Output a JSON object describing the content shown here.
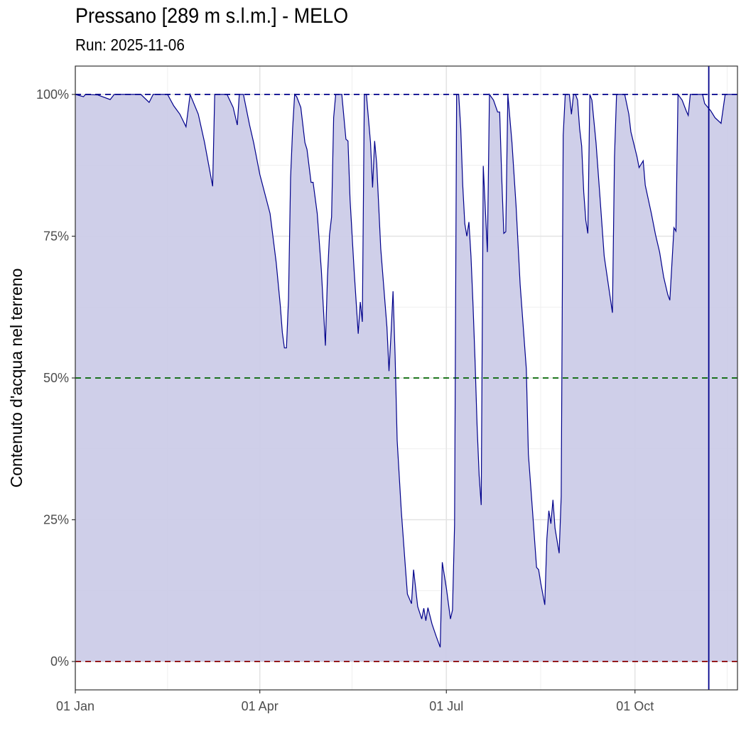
{
  "title": "Pressano [289 m s.l.m.] - MELO",
  "subtitle": "Run: 2025-11-06",
  "chart_data": {
    "type": "area",
    "title": "Pressano [289 m s.l.m.] - MELO",
    "subtitle": "Run: 2025-11-06",
    "xlabel": "",
    "ylabel": "Contenuto d'acqua nel terreno",
    "xlim": [
      "2025-01-01",
      "2025-11-20"
    ],
    "ylim": [
      -5,
      105
    ],
    "x_ticks": [
      {
        "date": "2025-01-01",
        "label": "01 Jan"
      },
      {
        "date": "2025-04-01",
        "label": "01 Apr"
      },
      {
        "date": "2025-07-01",
        "label": "01 Jul"
      },
      {
        "date": "2025-10-01",
        "label": "01 Oct"
      }
    ],
    "y_ticks": [
      {
        "value": 0,
        "label": "0%"
      },
      {
        "value": 25,
        "label": "25%"
      },
      {
        "value": 50,
        "label": "50%"
      },
      {
        "value": 75,
        "label": "75%"
      },
      {
        "value": 100,
        "label": "100%"
      }
    ],
    "grid": true,
    "colors": {
      "line": "#00008b",
      "fill": "#ccccE8",
      "ref_100": "#00008b",
      "ref_50": "#006400",
      "ref_0": "#8b0000",
      "run_line": "#00008b"
    },
    "reference_lines": [
      {
        "value": 100,
        "style": "dashed",
        "color": "#00008b"
      },
      {
        "value": 50,
        "style": "dashed",
        "color": "#006400"
      },
      {
        "value": 0,
        "style": "dashed",
        "color": "#8b0000"
      }
    ],
    "vertical_line": {
      "date": "2025-11-06",
      "color": "#00008b"
    },
    "series": [
      {
        "points": [
          [
            "2025-01-01",
            100
          ],
          [
            "2025-01-05",
            99.6
          ],
          [
            "2025-01-06",
            100
          ],
          [
            "2025-01-12",
            99.9
          ],
          [
            "2025-01-18",
            99.1
          ],
          [
            "2025-01-20",
            100
          ],
          [
            "2025-02-02",
            100
          ],
          [
            "2025-02-06",
            98.6
          ],
          [
            "2025-02-08",
            100
          ],
          [
            "2025-02-15",
            100
          ],
          [
            "2025-02-18",
            98
          ],
          [
            "2025-02-21",
            96.5
          ],
          [
            "2025-02-24",
            94.3
          ],
          [
            "2025-02-26",
            100
          ],
          [
            "2025-03-02",
            96.5
          ],
          [
            "2025-03-05",
            91.6
          ],
          [
            "2025-03-09",
            83.8
          ],
          [
            "2025-03-10",
            100
          ],
          [
            "2025-03-16",
            100
          ],
          [
            "2025-03-19",
            97.7
          ],
          [
            "2025-03-21",
            94.6
          ],
          [
            "2025-03-22",
            100
          ],
          [
            "2025-03-24",
            100
          ],
          [
            "2025-03-27",
            94.6
          ],
          [
            "2025-03-29",
            91.5
          ],
          [
            "2025-04-01",
            85.9
          ],
          [
            "2025-04-06",
            79
          ],
          [
            "2025-04-09",
            70.3
          ],
          [
            "2025-04-11",
            62.8
          ],
          [
            "2025-04-12",
            58
          ],
          [
            "2025-04-13",
            55.3
          ],
          [
            "2025-04-14",
            55.3
          ],
          [
            "2025-04-15",
            64
          ],
          [
            "2025-04-16",
            85.3
          ],
          [
            "2025-04-17",
            94
          ],
          [
            "2025-04-18",
            100
          ],
          [
            "2025-04-19",
            99.6
          ],
          [
            "2025-04-21",
            97.7
          ],
          [
            "2025-04-23",
            91.5
          ],
          [
            "2025-04-24",
            90.3
          ],
          [
            "2025-04-26",
            84.5
          ],
          [
            "2025-04-27",
            84.5
          ],
          [
            "2025-04-29",
            79
          ],
          [
            "2025-05-01",
            69
          ],
          [
            "2025-05-03",
            55.7
          ],
          [
            "2025-05-04",
            67.8
          ],
          [
            "2025-05-05",
            75.3
          ],
          [
            "2025-05-06",
            78.4
          ],
          [
            "2025-05-07",
            95.9
          ],
          [
            "2025-05-08",
            100
          ],
          [
            "2025-05-11",
            100
          ],
          [
            "2025-05-13",
            92.1
          ],
          [
            "2025-05-14",
            91.8
          ],
          [
            "2025-05-15",
            81.5
          ],
          [
            "2025-05-17",
            69
          ],
          [
            "2025-05-19",
            57.8
          ],
          [
            "2025-05-20",
            63.4
          ],
          [
            "2025-05-21",
            59.9
          ],
          [
            "2025-05-22",
            100
          ],
          [
            "2025-05-23",
            100
          ],
          [
            "2025-05-25",
            91.5
          ],
          [
            "2025-05-26",
            83.6
          ],
          [
            "2025-05-27",
            91.8
          ],
          [
            "2025-05-28",
            87.8
          ],
          [
            "2025-05-30",
            72.8
          ],
          [
            "2025-06-02",
            59
          ],
          [
            "2025-06-03",
            51.2
          ],
          [
            "2025-06-04",
            57.8
          ],
          [
            "2025-06-05",
            65.3
          ],
          [
            "2025-06-06",
            54
          ],
          [
            "2025-06-07",
            39
          ],
          [
            "2025-06-09",
            26.6
          ],
          [
            "2025-06-11",
            16.6
          ],
          [
            "2025-06-12",
            11.9
          ],
          [
            "2025-06-14",
            10.2
          ],
          [
            "2025-06-15",
            16.2
          ],
          [
            "2025-06-17",
            9.7
          ],
          [
            "2025-06-19",
            7.5
          ],
          [
            "2025-06-20",
            9.4
          ],
          [
            "2025-06-21",
            7.2
          ],
          [
            "2025-06-22",
            9.5
          ],
          [
            "2025-06-24",
            6.6
          ],
          [
            "2025-06-26",
            4.5
          ],
          [
            "2025-06-28",
            2.5
          ],
          [
            "2025-06-29",
            17.5
          ],
          [
            "2025-07-01",
            12.9
          ],
          [
            "2025-07-03",
            7.5
          ],
          [
            "2025-07-04",
            9.1
          ],
          [
            "2025-07-05",
            24.1
          ],
          [
            "2025-07-06",
            100
          ],
          [
            "2025-07-07",
            100
          ],
          [
            "2025-07-08",
            94
          ],
          [
            "2025-07-09",
            84
          ],
          [
            "2025-07-10",
            77.2
          ],
          [
            "2025-07-11",
            75
          ],
          [
            "2025-07-12",
            77.5
          ],
          [
            "2025-07-13",
            71.5
          ],
          [
            "2025-07-14",
            62.8
          ],
          [
            "2025-07-15",
            52.8
          ],
          [
            "2025-07-16",
            41.6
          ],
          [
            "2025-07-17",
            32.8
          ],
          [
            "2025-07-18",
            27.6
          ],
          [
            "2025-07-19",
            87.4
          ],
          [
            "2025-07-21",
            72.2
          ],
          [
            "2025-07-22",
            100
          ],
          [
            "2025-07-24",
            99
          ],
          [
            "2025-07-26",
            96.9
          ],
          [
            "2025-07-27",
            96.9
          ],
          [
            "2025-07-28",
            85.3
          ],
          [
            "2025-07-29",
            75.5
          ],
          [
            "2025-07-30",
            75.8
          ],
          [
            "2025-07-31",
            100
          ],
          [
            "2025-08-02",
            91.5
          ],
          [
            "2025-08-04",
            80.3
          ],
          [
            "2025-08-06",
            66.5
          ],
          [
            "2025-08-09",
            51.6
          ],
          [
            "2025-08-10",
            36.6
          ],
          [
            "2025-08-12",
            26.6
          ],
          [
            "2025-08-14",
            16.6
          ],
          [
            "2025-08-15",
            16.2
          ],
          [
            "2025-08-16",
            13.9
          ],
          [
            "2025-08-18",
            10
          ],
          [
            "2025-08-19",
            21.6
          ],
          [
            "2025-08-20",
            26.6
          ],
          [
            "2025-08-21",
            24.3
          ],
          [
            "2025-08-22",
            28.5
          ],
          [
            "2025-08-23",
            23.5
          ],
          [
            "2025-08-25",
            19.1
          ],
          [
            "2025-08-26",
            29.1
          ],
          [
            "2025-08-27",
            92.8
          ],
          [
            "2025-08-28",
            100
          ],
          [
            "2025-08-30",
            100
          ],
          [
            "2025-08-31",
            96.5
          ],
          [
            "2025-09-01",
            100
          ],
          [
            "2025-09-02",
            100
          ],
          [
            "2025-09-03",
            99
          ],
          [
            "2025-09-04",
            94
          ],
          [
            "2025-09-05",
            90.9
          ],
          [
            "2025-09-06",
            82.8
          ],
          [
            "2025-09-07",
            77.8
          ],
          [
            "2025-09-08",
            75.5
          ],
          [
            "2025-09-09",
            100
          ],
          [
            "2025-09-10",
            99
          ],
          [
            "2025-09-12",
            91.5
          ],
          [
            "2025-09-14",
            81.5
          ],
          [
            "2025-09-16",
            71.5
          ],
          [
            "2025-09-18",
            66.5
          ],
          [
            "2025-09-20",
            61.5
          ],
          [
            "2025-09-21",
            89
          ],
          [
            "2025-09-22",
            100
          ],
          [
            "2025-09-26",
            100
          ],
          [
            "2025-09-28",
            96.5
          ],
          [
            "2025-09-29",
            93.4
          ],
          [
            "2025-10-02",
            89
          ],
          [
            "2025-10-03",
            87.1
          ],
          [
            "2025-10-05",
            88.3
          ],
          [
            "2025-10-06",
            84
          ],
          [
            "2025-10-09",
            79
          ],
          [
            "2025-10-11",
            75.3
          ],
          [
            "2025-10-13",
            72.2
          ],
          [
            "2025-10-15",
            67.8
          ],
          [
            "2025-10-17",
            64.7
          ],
          [
            "2025-10-18",
            63.7
          ],
          [
            "2025-10-20",
            76.5
          ],
          [
            "2025-10-21",
            75.9
          ],
          [
            "2025-10-22",
            100
          ],
          [
            "2025-10-24",
            99
          ],
          [
            "2025-10-26",
            97.1
          ],
          [
            "2025-10-27",
            96.3
          ],
          [
            "2025-10-28",
            100
          ],
          [
            "2025-11-03",
            100
          ],
          [
            "2025-11-04",
            98.4
          ],
          [
            "2025-11-07",
            97.1
          ],
          [
            "2025-11-09",
            95.9
          ],
          [
            "2025-11-12",
            94.9
          ],
          [
            "2025-11-14",
            100
          ],
          [
            "2025-11-20",
            100
          ]
        ]
      }
    ]
  }
}
